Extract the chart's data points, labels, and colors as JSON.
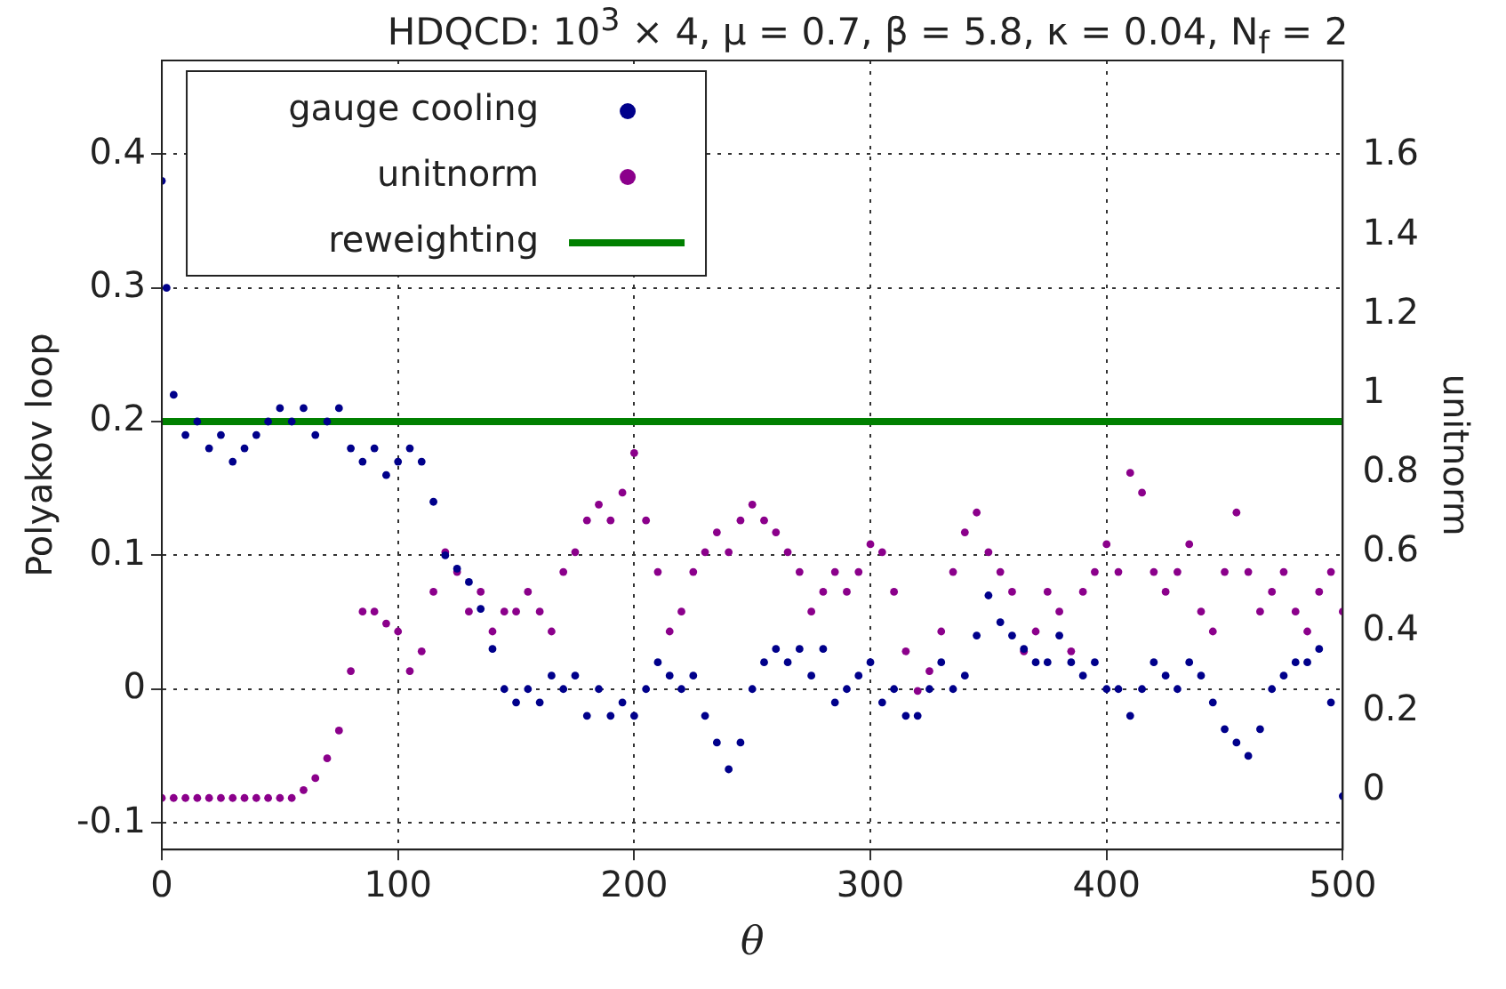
{
  "chart_data": {
    "type": "scatter",
    "title": "HDQCD: 10$^{3}$ × 4, μ = 0.7, β = 5.8, κ = 0.04, N$_{f}$ = 2",
    "xlabel": "θ",
    "ylabel": "Polyakov loop",
    "y2label": "unitnorm",
    "xlim": [
      0,
      500
    ],
    "xticks": [
      0,
      100,
      200,
      300,
      400,
      500
    ],
    "ylim": [
      -0.12,
      0.47
    ],
    "yticks": [
      -0.1,
      0,
      0.1,
      0.2,
      0.3,
      0.4
    ],
    "y2lim": [
      -0.15,
      1.84
    ],
    "y2ticks": [
      0,
      0.2,
      0.4,
      0.6,
      0.8,
      1,
      1.2,
      1.4,
      1.6
    ],
    "grid": true,
    "legend": "top left",
    "marker": "circle",
    "series": [
      {
        "name": "gauge cooling",
        "color": "#00008b",
        "x": [
          0,
          2,
          5,
          10,
          15,
          20,
          25,
          30,
          35,
          40,
          45,
          50,
          55,
          60,
          65,
          70,
          75,
          80,
          85,
          90,
          95,
          100,
          105,
          110,
          115,
          120,
          125,
          130,
          135,
          140,
          145,
          150,
          155,
          160,
          165,
          170,
          175,
          180,
          185,
          190,
          195,
          200,
          205,
          210,
          215,
          220,
          225,
          230,
          235,
          240,
          245,
          250,
          255,
          260,
          265,
          270,
          275,
          280,
          285,
          290,
          295,
          300,
          305,
          310,
          315,
          320,
          325,
          330,
          335,
          340,
          345,
          350,
          355,
          360,
          365,
          370,
          375,
          380,
          385,
          390,
          395,
          400,
          405,
          410,
          415,
          420,
          425,
          430,
          435,
          440,
          445,
          450,
          455,
          460,
          465,
          470,
          475,
          480,
          485,
          490,
          495,
          500
        ],
        "values": [
          0.38,
          0.3,
          0.22,
          0.19,
          0.2,
          0.18,
          0.19,
          0.17,
          0.18,
          0.19,
          0.2,
          0.21,
          0.2,
          0.21,
          0.19,
          0.2,
          0.21,
          0.18,
          0.17,
          0.18,
          0.16,
          0.17,
          0.18,
          0.17,
          0.14,
          0.1,
          0.09,
          0.08,
          0.06,
          0.03,
          0.0,
          -0.01,
          0.0,
          -0.01,
          0.01,
          0.0,
          0.01,
          -0.02,
          0.0,
          -0.02,
          -0.01,
          -0.02,
          0.0,
          0.02,
          0.01,
          0.0,
          0.01,
          -0.02,
          -0.04,
          -0.06,
          -0.04,
          0.0,
          0.02,
          0.03,
          0.02,
          0.03,
          0.01,
          0.03,
          -0.01,
          0.0,
          0.01,
          0.02,
          -0.01,
          0.0,
          -0.02,
          -0.02,
          0.0,
          0.02,
          0.0,
          0.01,
          0.04,
          0.07,
          0.05,
          0.04,
          0.03,
          0.02,
          0.02,
          0.04,
          0.02,
          0.01,
          0.02,
          0.0,
          0.0,
          -0.02,
          0.0,
          0.02,
          0.01,
          0.0,
          0.02,
          0.01,
          -0.01,
          -0.03,
          -0.04,
          -0.05,
          -0.03,
          0.0,
          0.01,
          0.02,
          0.02,
          0.03,
          -0.01,
          -0.08
        ]
      },
      {
        "name": "unitnorm",
        "color": "#8b008b",
        "axis": "y2",
        "x": [
          0,
          5,
          10,
          15,
          20,
          25,
          30,
          35,
          40,
          45,
          50,
          55,
          60,
          65,
          70,
          75,
          80,
          85,
          90,
          95,
          100,
          105,
          110,
          115,
          120,
          125,
          130,
          135,
          140,
          145,
          150,
          155,
          160,
          165,
          170,
          175,
          180,
          185,
          190,
          195,
          200,
          205,
          210,
          215,
          220,
          225,
          230,
          235,
          240,
          245,
          250,
          255,
          260,
          265,
          270,
          275,
          280,
          285,
          290,
          295,
          300,
          305,
          310,
          315,
          320,
          325,
          330,
          335,
          340,
          345,
          350,
          355,
          360,
          365,
          370,
          375,
          380,
          385,
          390,
          395,
          400,
          405,
          410,
          415,
          420,
          425,
          430,
          435,
          440,
          445,
          450,
          455,
          460,
          465,
          470,
          475,
          480,
          485,
          490,
          495,
          500
        ],
        "values": [
          -0.02,
          -0.02,
          -0.02,
          -0.02,
          -0.02,
          -0.02,
          -0.02,
          -0.02,
          -0.02,
          -0.02,
          -0.02,
          -0.02,
          0.0,
          0.03,
          0.08,
          0.15,
          0.3,
          0.45,
          0.45,
          0.42,
          0.4,
          0.3,
          0.35,
          0.5,
          0.6,
          0.55,
          0.45,
          0.5,
          0.4,
          0.45,
          0.45,
          0.5,
          0.45,
          0.4,
          0.55,
          0.6,
          0.68,
          0.72,
          0.68,
          0.75,
          0.85,
          0.68,
          0.55,
          0.4,
          0.45,
          0.55,
          0.6,
          0.65,
          0.6,
          0.68,
          0.72,
          0.68,
          0.65,
          0.6,
          0.55,
          0.45,
          0.5,
          0.55,
          0.5,
          0.55,
          0.62,
          0.6,
          0.5,
          0.35,
          0.25,
          0.3,
          0.4,
          0.55,
          0.65,
          0.7,
          0.6,
          0.55,
          0.5,
          0.35,
          0.4,
          0.5,
          0.45,
          0.35,
          0.5,
          0.55,
          0.62,
          0.55,
          0.8,
          0.75,
          0.55,
          0.5,
          0.55,
          0.62,
          0.45,
          0.4,
          0.55,
          0.7,
          0.55,
          0.45,
          0.5,
          0.55,
          0.45,
          0.4,
          0.5,
          0.55,
          0.45
        ]
      },
      {
        "name": "reweighting",
        "color": "#008000",
        "type": "line",
        "marker": "none",
        "x": [
          0,
          500
        ],
        "values": [
          0.2,
          0.2
        ]
      }
    ]
  }
}
